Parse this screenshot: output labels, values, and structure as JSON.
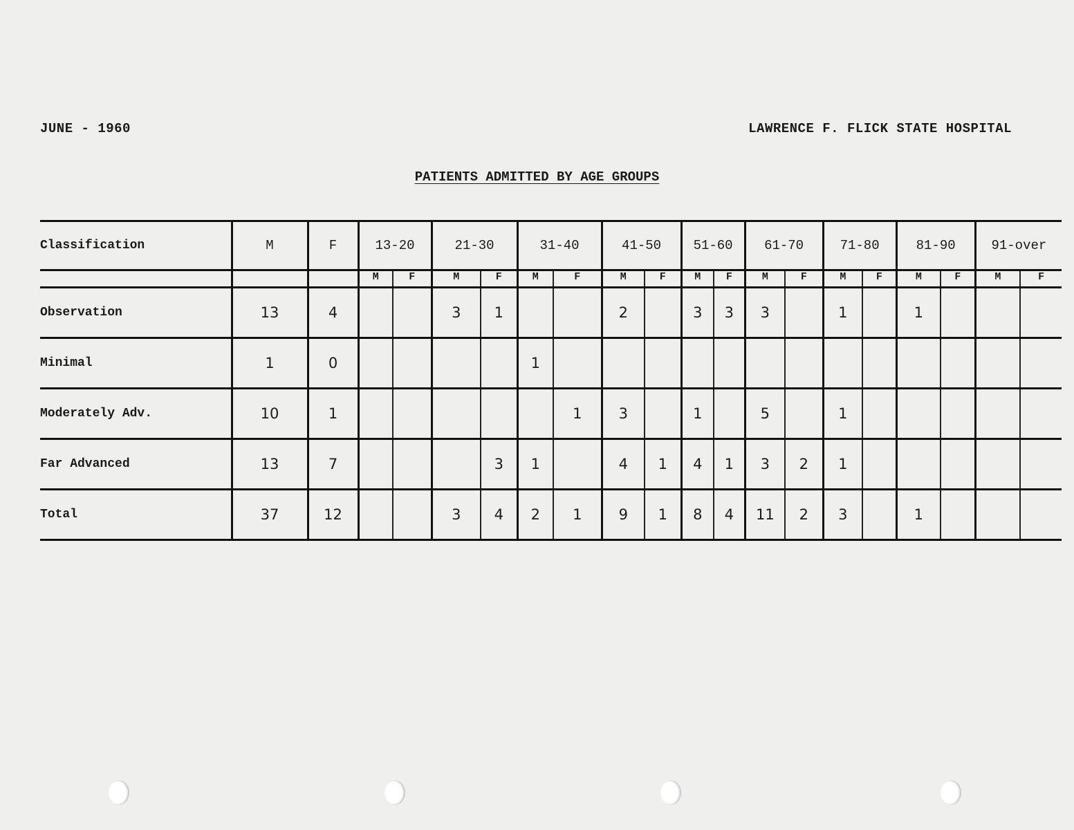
{
  "header": {
    "date": "JUNE - 1960",
    "institution": "LAWRENCE F. FLICK STATE HOSPITAL",
    "title": "PATIENTS ADMITTED BY AGE GROUPS"
  },
  "table": {
    "columns": [
      "Classification",
      "M",
      "F",
      "13-20",
      "21-30",
      "31-40",
      "41-50",
      "51-60",
      "61-70",
      "71-80",
      "81-90",
      "91-over"
    ],
    "sub_labels": [
      "M",
      "F"
    ],
    "rows": [
      {
        "label": "Observation",
        "m": "13",
        "f": "4",
        "cells": [
          "",
          "",
          "3",
          "1",
          "",
          "",
          "2",
          "",
          "3",
          "3",
          "3",
          "",
          "1",
          "",
          "1",
          "",
          "",
          ""
        ]
      },
      {
        "label": "Minimal",
        "m": "1",
        "f": "0",
        "cells": [
          "",
          "",
          "",
          "",
          "1",
          "",
          "",
          "",
          "",
          "",
          "",
          "",
          "",
          "",
          "",
          "",
          "",
          ""
        ]
      },
      {
        "label": "Moderately Adv.",
        "m": "10",
        "f": "1",
        "cells": [
          "",
          "",
          "",
          "",
          "",
          "1",
          "3",
          "",
          "1",
          "",
          "5",
          "",
          "1",
          "",
          "",
          "",
          "",
          ""
        ]
      },
      {
        "label": "Far Advanced",
        "m": "13",
        "f": "7",
        "cells": [
          "",
          "",
          "",
          "3",
          "1",
          "",
          "4",
          "1",
          "4",
          "1",
          "3",
          "2",
          "1",
          "",
          "",
          "",
          "",
          ""
        ]
      },
      {
        "label": "Total",
        "m": "37",
        "f": "12",
        "cells": [
          "",
          "",
          "3",
          "4",
          "2",
          "1",
          "9",
          "1",
          "8",
          "4",
          "11",
          "2",
          "3",
          "",
          "1",
          "",
          "",
          ""
        ]
      }
    ]
  }
}
